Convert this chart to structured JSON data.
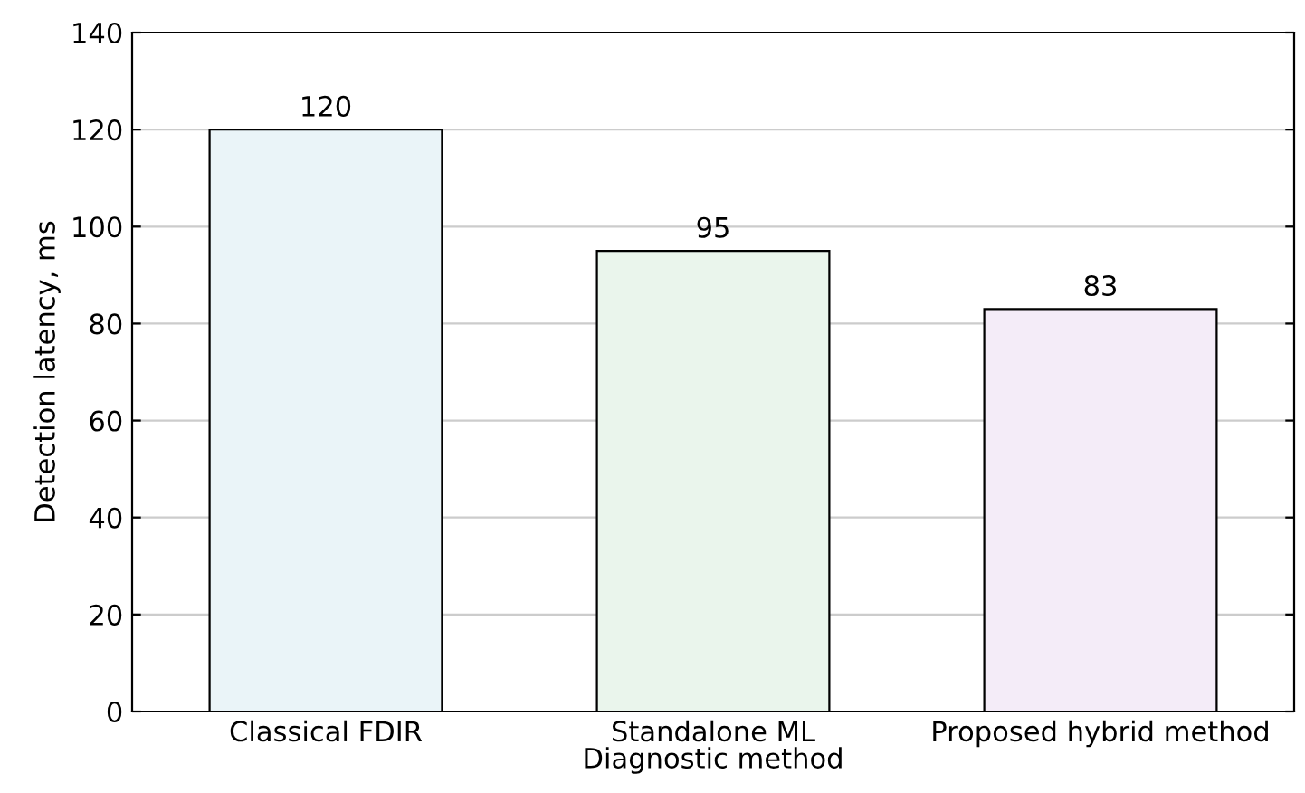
{
  "chart_data": {
    "type": "bar",
    "xlabel": "Diagnostic method",
    "ylabel": "Detection latency, ms",
    "categories": [
      "Classical FDIR",
      "Standalone ML",
      "Proposed hybrid method"
    ],
    "values": [
      120,
      95,
      83
    ],
    "colors": [
      "#eaf4f8",
      "#eaf5ec",
      "#f4ecf8"
    ],
    "ylim": [
      0,
      140
    ],
    "yticks": [
      0,
      20,
      40,
      60,
      80,
      100,
      120,
      140
    ],
    "grid": "y",
    "data_labels": true
  }
}
